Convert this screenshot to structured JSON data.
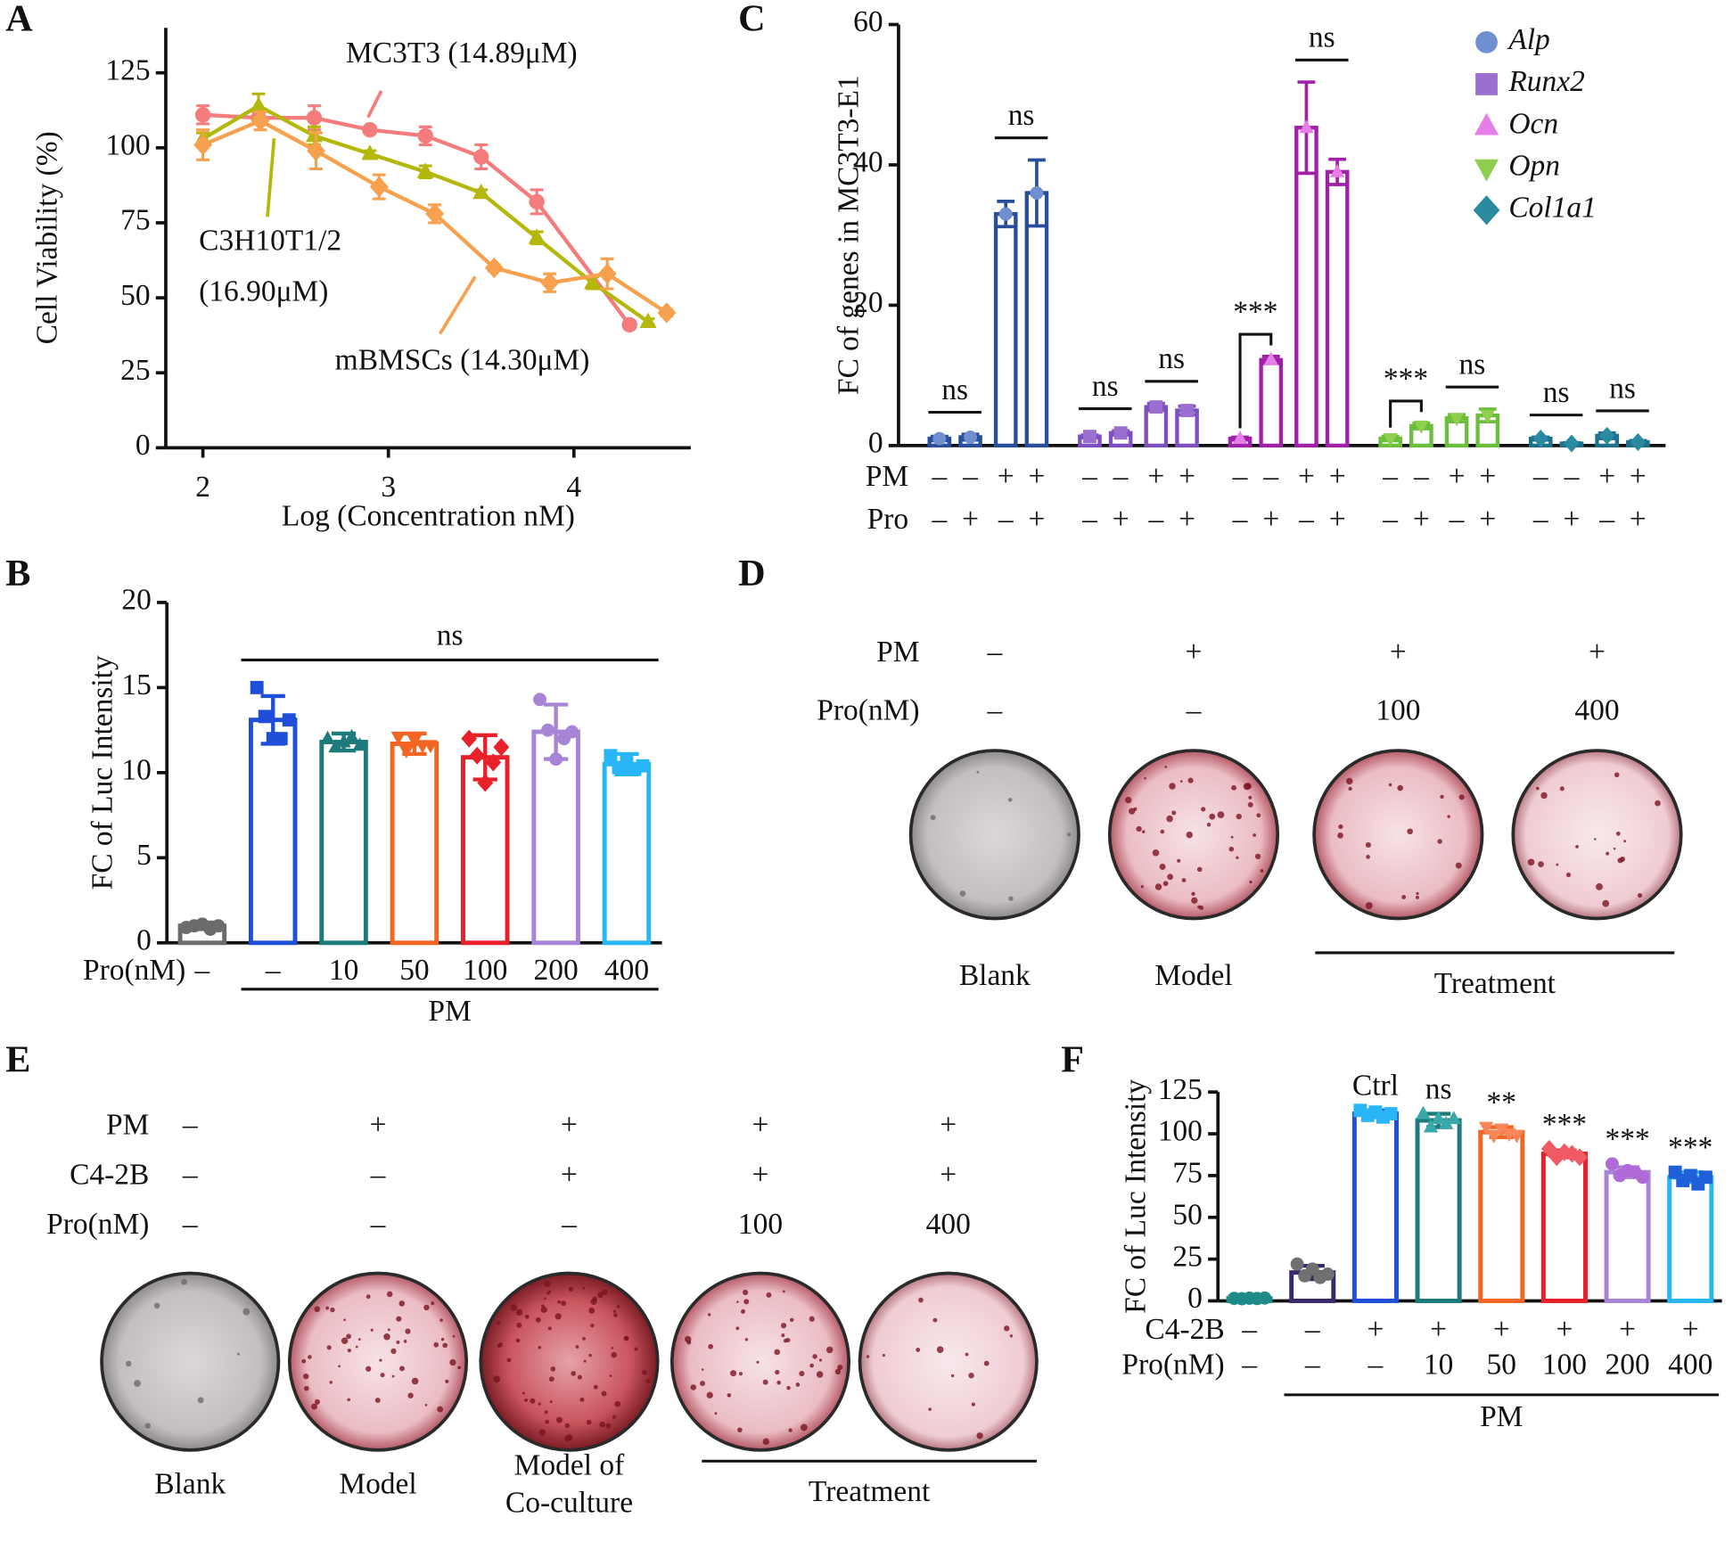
{
  "panel_letters": [
    "A",
    "B",
    "C",
    "D",
    "E",
    "F"
  ],
  "chart_data": [
    {
      "type": "line",
      "xlabel": "Log (Concentration nM)",
      "ylabel": "Cell Viability (%)",
      "xlim": [
        1.8,
        4.63
      ],
      "ylim": [
        0,
        140
      ],
      "xticks": [
        2,
        3,
        4
      ],
      "yticks": [
        0,
        25,
        50,
        75,
        100,
        125
      ],
      "series": [
        {
          "label": [
            "MC3T3 (14.89μM)"
          ],
          "color": "#f47c7c",
          "marker": "circle",
          "x": [
            2,
            2.3,
            2.6,
            2.9,
            3.2,
            3.5,
            3.8,
            4.3
          ],
          "values": [
            111,
            110,
            110,
            106,
            104,
            97,
            82,
            41
          ],
          "errors": [
            3,
            2,
            4,
            1,
            3,
            4,
            4,
            1
          ]
        },
        {
          "label": [
            "C3H10T1/2",
            "(16.90μM)"
          ],
          "color": "#b4b80c",
          "marker": "triangle",
          "x": [
            2,
            2.3,
            2.6,
            2.9,
            3.2,
            3.5,
            3.8,
            4.1,
            4.4
          ],
          "values": [
            103,
            114,
            104,
            98,
            92,
            85,
            70,
            55,
            42
          ],
          "errors": [
            2,
            4,
            3,
            1,
            2,
            1,
            2,
            2,
            1
          ]
        },
        {
          "label": [
            "mBMSCs (14.30μM)"
          ],
          "color": "#f7a14e",
          "marker": "diamond",
          "x": [
            2,
            2.31,
            2.61,
            2.95,
            3.25,
            3.57,
            3.87,
            4.18,
            4.5
          ],
          "values": [
            101,
            109,
            99,
            87,
            78,
            60,
            55,
            58,
            45
          ],
          "errors": [
            5,
            3,
            6,
            4,
            3,
            1,
            3,
            5,
            1
          ]
        }
      ]
    },
    {
      "type": "bar",
      "ylabel": "FC of Luc Intensity",
      "ylim": [
        0,
        20
      ],
      "yticks": [
        0,
        5,
        10,
        15,
        20
      ],
      "values": [
        1.0,
        13.1,
        11.8,
        11.7,
        10.9,
        12.4,
        10.5
      ],
      "errors": [
        0.2,
        1.4,
        0.5,
        0.6,
        1.3,
        1.6,
        0.6
      ],
      "points": [
        [
          0.9,
          1.0,
          1.1,
          0.8,
          1.0
        ],
        [
          15.0,
          13.3,
          12.0,
          12.0,
          13.1
        ],
        [
          12.0,
          11.5,
          11.8,
          12.1,
          11.6
        ],
        [
          12.1,
          11.3,
          11.9,
          11.6,
          11.6
        ],
        [
          12.0,
          11.0,
          9.4,
          10.6,
          11.5
        ],
        [
          14.3,
          12.5,
          10.8,
          12.0,
          12.4
        ],
        [
          11.0,
          10.3,
          10.6,
          10.2,
          10.4
        ]
      ],
      "colors": [
        "#6b6b6b",
        "#1f4fd8",
        "#1e7b7b",
        "#f26522",
        "#e8202a",
        "#a784d6",
        "#29b6f6"
      ],
      "markers": [
        "circle",
        "square",
        "triangle",
        "triangle-down",
        "diamond",
        "circle",
        "square"
      ],
      "rows": [
        {
          "label": "Pro(nM)",
          "values": [
            "–",
            "–",
            "10",
            "50",
            "100",
            "200",
            "400"
          ]
        }
      ],
      "group_label": "PM",
      "annotation": "ns"
    },
    {
      "type": "grouped-bar",
      "ylabel": "FC of genes in MC3T3-E1",
      "ylim": [
        0,
        60
      ],
      "yticks": [
        0,
        20,
        40,
        60
      ],
      "series": [
        {
          "name": "Alp",
          "color": "#6f8fd0",
          "edge_color": "#2a4f9a",
          "marker": "circle",
          "values": [
            1.0,
            1.2,
            33,
            36
          ],
          "errors": [
            0.3,
            0.4,
            1.8,
            4.7
          ]
        },
        {
          "name": "Runx2",
          "color": "#9a6fcf",
          "edge_color": "#7d4fbf",
          "marker": "square",
          "values": [
            1.3,
            1.8,
            5.5,
            5.0
          ],
          "errors": [
            0.2,
            0.3,
            0.5,
            0.6
          ]
        },
        {
          "name": "Ocn",
          "color": "#e57ee6",
          "edge_color": "#a020a8",
          "marker": "triangle",
          "values": [
            1.0,
            12.2,
            45.3,
            39.0
          ],
          "errors": [
            0.2,
            0.5,
            6.5,
            1.8
          ]
        },
        {
          "name": "Opn",
          "color": "#8fcf50",
          "edge_color": "#6cbf3a",
          "marker": "triangle-down",
          "values": [
            1.0,
            2.8,
            3.9,
            4.3
          ],
          "errors": [
            0.3,
            0.4,
            0.5,
            0.9
          ]
        },
        {
          "name": "Col1a1",
          "color": "#2a8aa0",
          "edge_color": "#1f6f8f",
          "marker": "diamond",
          "values": [
            1.0,
            0.3,
            1.4,
            0.5
          ],
          "errors": [
            0.2,
            0.1,
            0.4,
            0.2
          ]
        }
      ],
      "rows": [
        {
          "label": "PM",
          "values": [
            "–",
            "–",
            "+",
            "+"
          ]
        },
        {
          "label": "Pro",
          "values": [
            "–",
            "+",
            "–",
            "+"
          ]
        }
      ],
      "significance": [
        [
          "ns",
          "ns"
        ],
        [
          "ns",
          "ns"
        ],
        [
          "***",
          "ns"
        ],
        [
          "***",
          "ns"
        ],
        [
          "ns",
          "ns"
        ]
      ]
    },
    {
      "type": "bar",
      "ylabel": "FC of Luc Intensity",
      "ylim": [
        0,
        125
      ],
      "yticks": [
        0,
        25,
        50,
        75,
        100,
        125
      ],
      "values": [
        1.5,
        17,
        112,
        108,
        101,
        88,
        77,
        74
      ],
      "errors": [
        0.5,
        4,
        2,
        4,
        3,
        2,
        3,
        3
      ],
      "points": [
        [
          1.5,
          1.3,
          1.6,
          1.4,
          1.7
        ],
        [
          22,
          15,
          19,
          14,
          16
        ],
        [
          114,
          111,
          113,
          110,
          112
        ],
        [
          112,
          104,
          109,
          106,
          109
        ],
        [
          104,
          99,
          103,
          100,
          99
        ],
        [
          91,
          86,
          89,
          88,
          86
        ],
        [
          82,
          75,
          78,
          77,
          74
        ],
        [
          77,
          72,
          75,
          70,
          74
        ]
      ],
      "colors": [
        "#1e8a8a",
        "#3b2a6b",
        "#1f4fd8",
        "#1e7b7b",
        "#f26522",
        "#e8202a",
        "#a784d6",
        "#29b6f6"
      ],
      "point_colors": [
        "#1e8a8a",
        "#707070",
        "#29b6f6",
        "#3aa8a8",
        "#f7875a",
        "#f05a64",
        "#b06ad8",
        "#1f5fd8"
      ],
      "markers": [
        "circle",
        "circle",
        "square",
        "triangle",
        "triangle-down",
        "diamond",
        "circle",
        "square"
      ],
      "rows": [
        {
          "label": "C4-2B",
          "values": [
            "–",
            "–",
            "+",
            "+",
            "+",
            "+",
            "+",
            "+"
          ]
        },
        {
          "label": "Pro(nM)",
          "values": [
            "–",
            "–",
            "–",
            "10",
            "50",
            "100",
            "200",
            "400"
          ]
        }
      ],
      "group_label": "PM",
      "annotations": [
        null,
        null,
        "Ctrl",
        "ns",
        "**",
        "***",
        "***",
        "***"
      ]
    }
  ],
  "images": [
    {
      "rows": [
        {
          "label": "PM",
          "values": [
            "–",
            "+",
            "+",
            "+"
          ]
        },
        {
          "label": "Pro(nM)",
          "values": [
            "–",
            "–",
            "100",
            "400"
          ]
        }
      ],
      "captions": [
        [
          "Blank"
        ],
        [
          "Model"
        ]
      ],
      "group_caption": "Treatment"
    },
    {
      "rows": [
        {
          "label": "PM",
          "values": [
            "–",
            "+",
            "+",
            "+",
            "+"
          ]
        },
        {
          "label": "C4-2B",
          "values": [
            "–",
            "–",
            "+",
            "+",
            "+"
          ]
        },
        {
          "label": "Pro(nM)",
          "values": [
            "–",
            "–",
            "–",
            "100",
            "400"
          ]
        }
      ],
      "captions": [
        [
          "Blank"
        ],
        [
          "Model"
        ],
        [
          "Model of",
          "Co-culture"
        ]
      ],
      "group_caption": "Treatment"
    }
  ]
}
